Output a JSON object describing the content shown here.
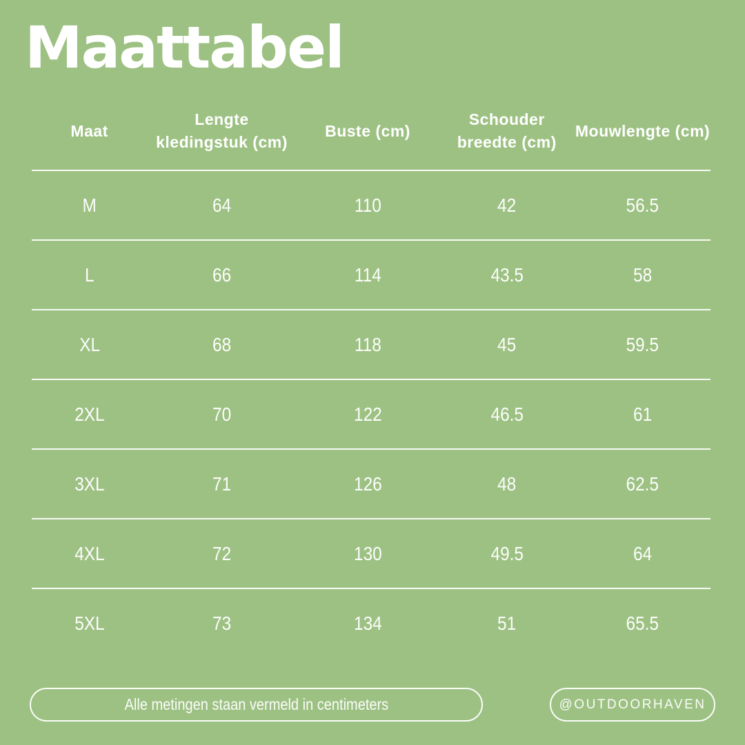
{
  "canvas": {
    "background_color": "#9dc183",
    "text_color": "#ffffff"
  },
  "title": "Maattabel",
  "chart_data": {
    "type": "table",
    "title": "Maattabel",
    "columns": [
      "Maat",
      "Lengte kledingstuk (cm)",
      "Buste (cm)",
      "Schouder breedte (cm)",
      "Mouwlengte (cm)"
    ],
    "rows": [
      [
        "M",
        "64",
        "110",
        "42",
        "56.5"
      ],
      [
        "L",
        "66",
        "114",
        "43.5",
        "58"
      ],
      [
        "XL",
        "68",
        "118",
        "45",
        "59.5"
      ],
      [
        "2XL",
        "70",
        "122",
        "46.5",
        "61"
      ],
      [
        "3XL",
        "71",
        "126",
        "48",
        "62.5"
      ],
      [
        "4XL",
        "72",
        "130",
        "49.5",
        "64"
      ],
      [
        "5XL",
        "73",
        "134",
        "51",
        "65.5"
      ]
    ],
    "unit": "cm"
  },
  "footer": {
    "note": "Alle metingen staan vermeld in centimeters",
    "handle": "@OUTDOORHAVEN"
  }
}
